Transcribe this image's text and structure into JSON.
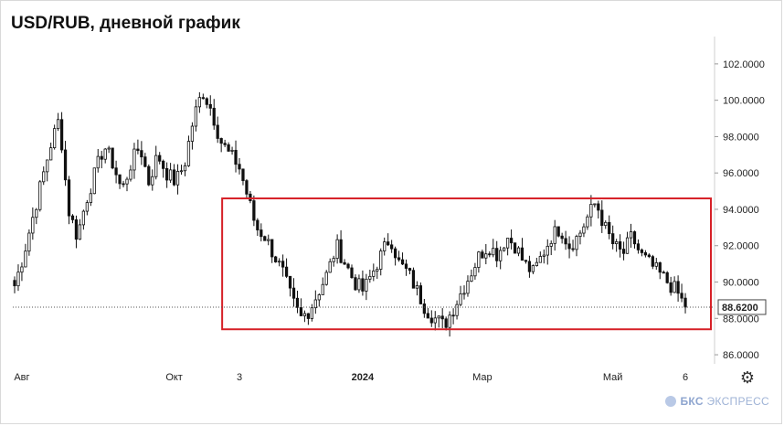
{
  "title": "USD/RUB, дневной график",
  "brand": {
    "icon": "bks-logo-icon",
    "name_bold": "БКС",
    "name": "ЭКСПРЕСС"
  },
  "chart_data": {
    "type": "candlestick",
    "title": "USD/RUB, дневной график",
    "ylim": [
      85.5,
      103.0
    ],
    "y_ticks": [
      "102.0000",
      "100.0000",
      "98.0000",
      "96.0000",
      "94.0000",
      "92.0000",
      "90.0000",
      "88.0000",
      "86.0000"
    ],
    "y_tick_values": [
      102,
      100,
      98,
      96,
      94,
      92,
      90,
      88,
      86
    ],
    "x_ticks": [
      {
        "label": "Авг",
        "index": 2,
        "bold": false
      },
      {
        "label": "Окт",
        "index": 44,
        "bold": false
      },
      {
        "label": "3",
        "index": 62,
        "bold": false
      },
      {
        "label": "2024",
        "index": 96,
        "bold": true
      },
      {
        "label": "Мар",
        "index": 129,
        "bold": false
      },
      {
        "label": "Май",
        "index": 165,
        "bold": false
      },
      {
        "label": "6",
        "index": 185,
        "bold": false
      }
    ],
    "last_price": 88.62,
    "last_price_label": "88.6200",
    "highlight_box": {
      "y_low": 87.4,
      "y_high": 94.6,
      "start_index": 58
    },
    "grid": false,
    "colors": {
      "up": "#ffffff",
      "down": "#111111",
      "box": "#d62027",
      "price_line": "#555555"
    },
    "close_path": [
      89.8,
      91.5,
      93.5,
      95.5,
      97.5,
      99.0,
      94.0,
      92.5,
      94.5,
      96.0,
      97.5,
      96.5,
      95.0,
      96.5,
      97.5,
      95.5,
      97.0,
      96.0,
      95.5,
      96.5,
      99.0,
      100.5,
      99.5,
      97.8,
      97.0,
      96.5,
      94.8,
      93.0,
      92.5,
      91.5,
      90.5,
      89.0,
      88.0,
      88.5,
      89.5,
      90.5,
      92.0,
      91.0,
      90.0,
      89.5,
      90.5,
      91.5,
      92.5,
      91.0,
      90.5,
      89.5,
      88.5,
      88.0,
      87.6,
      88.5,
      89.5,
      90.5,
      91.5,
      92.0,
      91.5,
      92.5,
      92.0,
      91.0,
      90.5,
      91.5,
      92.5,
      93.0,
      92.0,
      92.5,
      93.5,
      94.4,
      93.0,
      92.0,
      91.5,
      92.5,
      91.5,
      91.0,
      90.5,
      90.0,
      89.5,
      88.62
    ]
  }
}
